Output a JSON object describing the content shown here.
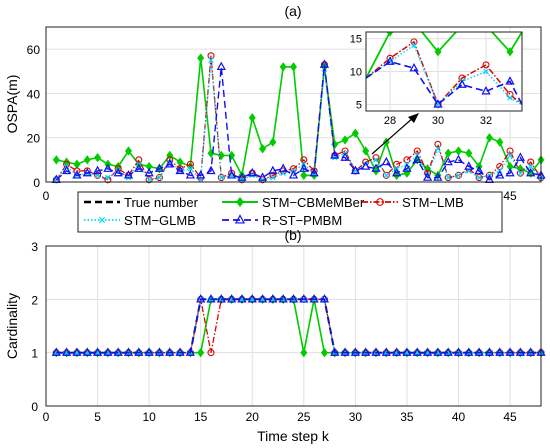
{
  "chart_data": [
    {
      "type": "line",
      "title": "(a)",
      "xlabel": "",
      "ylabel": "OSPA(m)",
      "xlim": [
        0,
        48
      ],
      "ylim": [
        0,
        70
      ],
      "x_ticks": [
        "0",
        "45"
      ],
      "y_ticks": [
        "0",
        "20",
        "40",
        "60"
      ],
      "grid": true,
      "legend": {
        "placement": "below-plot",
        "entries": [
          "True number",
          "STM−CBMeMBer",
          "STM−LMB",
          "STM−GLMB",
          "R−ST−PMBM"
        ]
      },
      "x": [
        1,
        2,
        3,
        4,
        5,
        6,
        7,
        8,
        9,
        10,
        11,
        12,
        13,
        14,
        15,
        16,
        17,
        18,
        19,
        20,
        21,
        22,
        23,
        24,
        25,
        26,
        27,
        28,
        29,
        30,
        31,
        32,
        33,
        34,
        35,
        36,
        37,
        38,
        39,
        40,
        41,
        42,
        43,
        44,
        45,
        46,
        47,
        48
      ],
      "series": [
        {
          "name": "STM−CBMeMBer",
          "color": "#00cc00",
          "values": [
            10,
            9,
            8,
            10,
            11,
            8,
            7,
            14,
            8,
            7,
            6,
            12,
            9,
            7,
            56,
            13,
            12,
            12,
            3,
            29,
            15,
            18,
            52,
            52,
            3,
            3,
            52,
            17,
            19,
            22,
            14,
            5,
            18,
            3,
            4,
            10,
            6,
            3,
            13,
            14,
            13,
            7,
            20,
            18,
            7,
            6,
            4,
            10
          ]
        },
        {
          "name": "STM−LMB",
          "color": "#dd0000",
          "values": [
            1,
            8,
            5,
            5,
            3,
            1,
            6,
            3,
            10,
            1,
            2,
            10,
            6,
            8,
            2,
            57,
            2,
            4,
            1,
            4,
            1,
            3,
            5,
            6,
            10,
            5,
            53,
            12,
            14,
            5,
            9,
            11,
            3,
            8,
            10,
            14,
            4,
            17,
            2,
            3,
            6,
            2,
            3,
            7,
            14,
            4,
            9,
            2
          ]
        },
        {
          "name": "STM−GLMB",
          "color": "#00d5ff",
          "values": [
            1,
            7,
            3,
            4,
            3,
            2,
            5,
            2,
            8,
            1,
            2,
            9,
            5,
            6,
            1,
            55,
            2,
            3,
            1,
            3,
            1,
            2,
            4,
            5,
            8,
            4,
            51,
            11,
            13,
            5,
            8,
            10,
            3,
            6,
            8,
            12,
            3,
            15,
            2,
            3,
            5,
            2,
            3,
            5,
            12,
            4,
            7,
            2
          ]
        },
        {
          "name": "R−ST−PMBM",
          "color": "#1010ee",
          "values": [
            1,
            5,
            3,
            4,
            5,
            6,
            4,
            3,
            6,
            4,
            6,
            8,
            5,
            3,
            3,
            5,
            52,
            3,
            2,
            4,
            2,
            5,
            6,
            3,
            6,
            4,
            53,
            12,
            11,
            5,
            7,
            6,
            9,
            4,
            6,
            10,
            2,
            2,
            9,
            10,
            7,
            5,
            1,
            3,
            4,
            11,
            4,
            3
          ]
        }
      ],
      "inset": {
        "xlim": [
          27,
          33.5
        ],
        "ylim": [
          4,
          16
        ],
        "x_ticks": [
          "28",
          "30",
          "32"
        ],
        "y_ticks": [
          "5",
          "10",
          "15"
        ],
        "x": [
          27,
          28,
          29,
          30,
          31,
          32,
          33,
          33.5
        ],
        "series": [
          {
            "name": "STM−CBMeMBer",
            "values": [
              9,
              16,
              17.5,
              13,
              17,
              17,
              13,
              16
            ]
          },
          {
            "name": "STM−LMB",
            "values": [
              9,
              12,
              14.5,
              5,
              9,
              11,
              6.5,
              5
            ]
          },
          {
            "name": "STM−GLMB",
            "values": [
              9,
              11.5,
              14,
              5,
              8.5,
              10,
              6,
              5
            ]
          },
          {
            "name": "R−ST−PMBM",
            "values": [
              9,
              11.5,
              10.5,
              5,
              8,
              7,
              8.5,
              5
            ]
          }
        ]
      }
    },
    {
      "type": "line",
      "title": "(b)",
      "xlabel": "Time step k",
      "ylabel": "Cardinality",
      "xlim": [
        0,
        48
      ],
      "ylim": [
        0,
        3
      ],
      "x_ticks": [
        "0",
        "5",
        "10",
        "15",
        "20",
        "25",
        "30",
        "35",
        "40",
        "45"
      ],
      "y_ticks": [
        "0",
        "1",
        "2",
        "3"
      ],
      "grid": true,
      "x": [
        1,
        2,
        3,
        4,
        5,
        6,
        7,
        8,
        9,
        10,
        11,
        12,
        13,
        14,
        15,
        16,
        17,
        18,
        19,
        20,
        21,
        22,
        23,
        24,
        25,
        26,
        27,
        28,
        29,
        30,
        31,
        32,
        33,
        34,
        35,
        36,
        37,
        38,
        39,
        40,
        41,
        42,
        43,
        44,
        45,
        46,
        47,
        48
      ],
      "series": [
        {
          "name": "True number",
          "color": "#000000",
          "values": [
            1,
            1,
            1,
            1,
            1,
            1,
            1,
            1,
            1,
            1,
            1,
            1,
            1,
            1,
            2,
            2,
            2,
            2,
            2,
            2,
            2,
            2,
            2,
            2,
            2,
            2,
            2,
            1,
            1,
            1,
            1,
            1,
            1,
            1,
            1,
            1,
            1,
            1,
            1,
            1,
            1,
            1,
            1,
            1,
            1,
            1,
            1,
            1
          ]
        },
        {
          "name": "STM−CBMeMBer",
          "color": "#00cc00",
          "values": [
            1,
            1,
            1,
            1,
            1,
            1,
            1,
            1,
            1,
            1,
            1,
            1,
            1,
            1,
            1,
            2,
            2,
            2,
            2,
            2,
            2,
            2,
            2,
            2,
            1,
            2,
            1,
            1,
            1,
            1,
            1,
            1,
            1,
            1,
            1,
            1,
            1,
            1,
            1,
            1,
            1,
            1,
            1,
            1,
            1,
            1,
            1,
            1
          ]
        },
        {
          "name": "STM−LMB",
          "color": "#dd0000",
          "values": [
            1,
            1,
            1,
            1,
            1,
            1,
            1,
            1,
            1,
            1,
            1,
            1,
            1,
            1,
            2,
            1,
            2,
            2,
            2,
            2,
            2,
            2,
            2,
            2,
            2,
            2,
            2,
            1,
            1,
            1,
            1,
            1,
            1,
            1,
            1,
            1,
            1,
            1,
            1,
            1,
            1,
            1,
            1,
            1,
            1,
            1,
            1,
            1
          ]
        },
        {
          "name": "STM−GLMB",
          "color": "#00d5ff",
          "values": [
            1,
            1,
            1,
            1,
            1,
            1,
            1,
            1,
            1,
            1,
            1,
            1,
            1,
            1,
            2,
            2,
            2,
            2,
            2,
            2,
            2,
            2,
            2,
            2,
            2,
            2,
            2,
            1,
            1,
            1,
            1,
            1,
            1,
            1,
            1,
            1,
            1,
            1,
            1,
            1,
            1,
            1,
            1,
            1,
            1,
            1,
            1,
            1
          ]
        },
        {
          "name": "R−ST−PMBM",
          "color": "#1010ee",
          "values": [
            1,
            1,
            1,
            1,
            1,
            1,
            1,
            1,
            1,
            1,
            1,
            1,
            1,
            1,
            2,
            2,
            2,
            2,
            2,
            2,
            2,
            2,
            2,
            2,
            2,
            2,
            2,
            1,
            1,
            1,
            1,
            1,
            1,
            1,
            1,
            1,
            1,
            1,
            1,
            1,
            1,
            1,
            1,
            1,
            1,
            1,
            1,
            1
          ]
        }
      ]
    }
  ]
}
